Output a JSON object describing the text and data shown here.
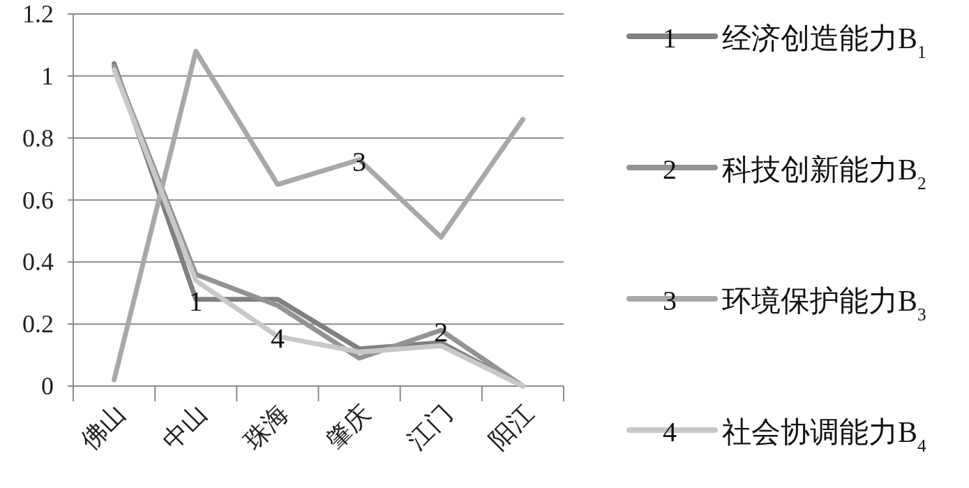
{
  "chart_data": {
    "type": "line",
    "categories": [
      "佛山",
      "中山",
      "珠海",
      "肇庆",
      "江门",
      "阳江"
    ],
    "series": [
      {
        "name": "经济创造能力B$_{1}$",
        "color": "#808080",
        "values": [
          1.04,
          0.28,
          0.28,
          0.12,
          0.14,
          0
        ]
      },
      {
        "name": "科技创新能力B$_{2}$",
        "color": "#939393",
        "values": [
          1.03,
          0.36,
          0.26,
          0.09,
          0.18,
          0
        ]
      },
      {
        "name": "环境保护能力B$_{3}$",
        "color": "#a8a8a8",
        "values": [
          0.02,
          1.08,
          0.65,
          0.73,
          0.48,
          0.86
        ]
      },
      {
        "name": "社会协调能力B$_{4}$",
        "color": "#c8c8c8",
        "values": [
          1.02,
          0.34,
          0.16,
          0.11,
          0.13,
          0
        ]
      }
    ],
    "ylim": [
      0,
      1.2
    ],
    "yticks": [
      0,
      0.2,
      0.4,
      0.6,
      0.8,
      1,
      1.2
    ],
    "grid": "y",
    "legend": "right",
    "annotations": [
      {
        "text": "1",
        "x": "中山",
        "y": 0.28
      },
      {
        "text": "2",
        "x": "江门",
        "y": 0.18
      },
      {
        "text": "3",
        "x": "肇庆",
        "y": 0.73
      },
      {
        "text": "4",
        "x": "珠海",
        "y": 0.16
      }
    ]
  }
}
